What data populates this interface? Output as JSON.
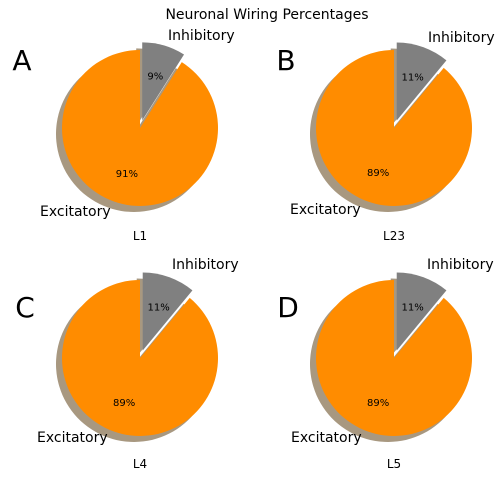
{
  "chart_data": {
    "type": "pie",
    "title": "Neuronal Wiring Percentages",
    "colors": {
      "excitatory": "#ff8c00",
      "inhibitory": "#808080",
      "shadow": "#a89880"
    },
    "legend": "none",
    "charts": [
      {
        "panel": "A",
        "xlabel": "L1",
        "slices": [
          {
            "label": "Inhibitory",
            "value": 9,
            "pct_label": "9%"
          },
          {
            "label": "Excitatory",
            "value": 91,
            "pct_label": "91%"
          }
        ]
      },
      {
        "panel": "B",
        "xlabel": "L23",
        "slices": [
          {
            "label": "Inhibitory",
            "value": 11,
            "pct_label": "11%"
          },
          {
            "label": "Excitatory",
            "value": 89,
            "pct_label": "89%"
          }
        ]
      },
      {
        "panel": "C",
        "xlabel": "L4",
        "slices": [
          {
            "label": "Inhibitory",
            "value": 11,
            "pct_label": "11%"
          },
          {
            "label": "Excitatory",
            "value": 89,
            "pct_label": "89%"
          }
        ]
      },
      {
        "panel": "D",
        "xlabel": "L5",
        "slices": [
          {
            "label": "Inhibitory",
            "value": 11,
            "pct_label": "11%"
          },
          {
            "label": "Excitatory",
            "value": 89,
            "pct_label": "89%"
          }
        ]
      }
    ]
  }
}
